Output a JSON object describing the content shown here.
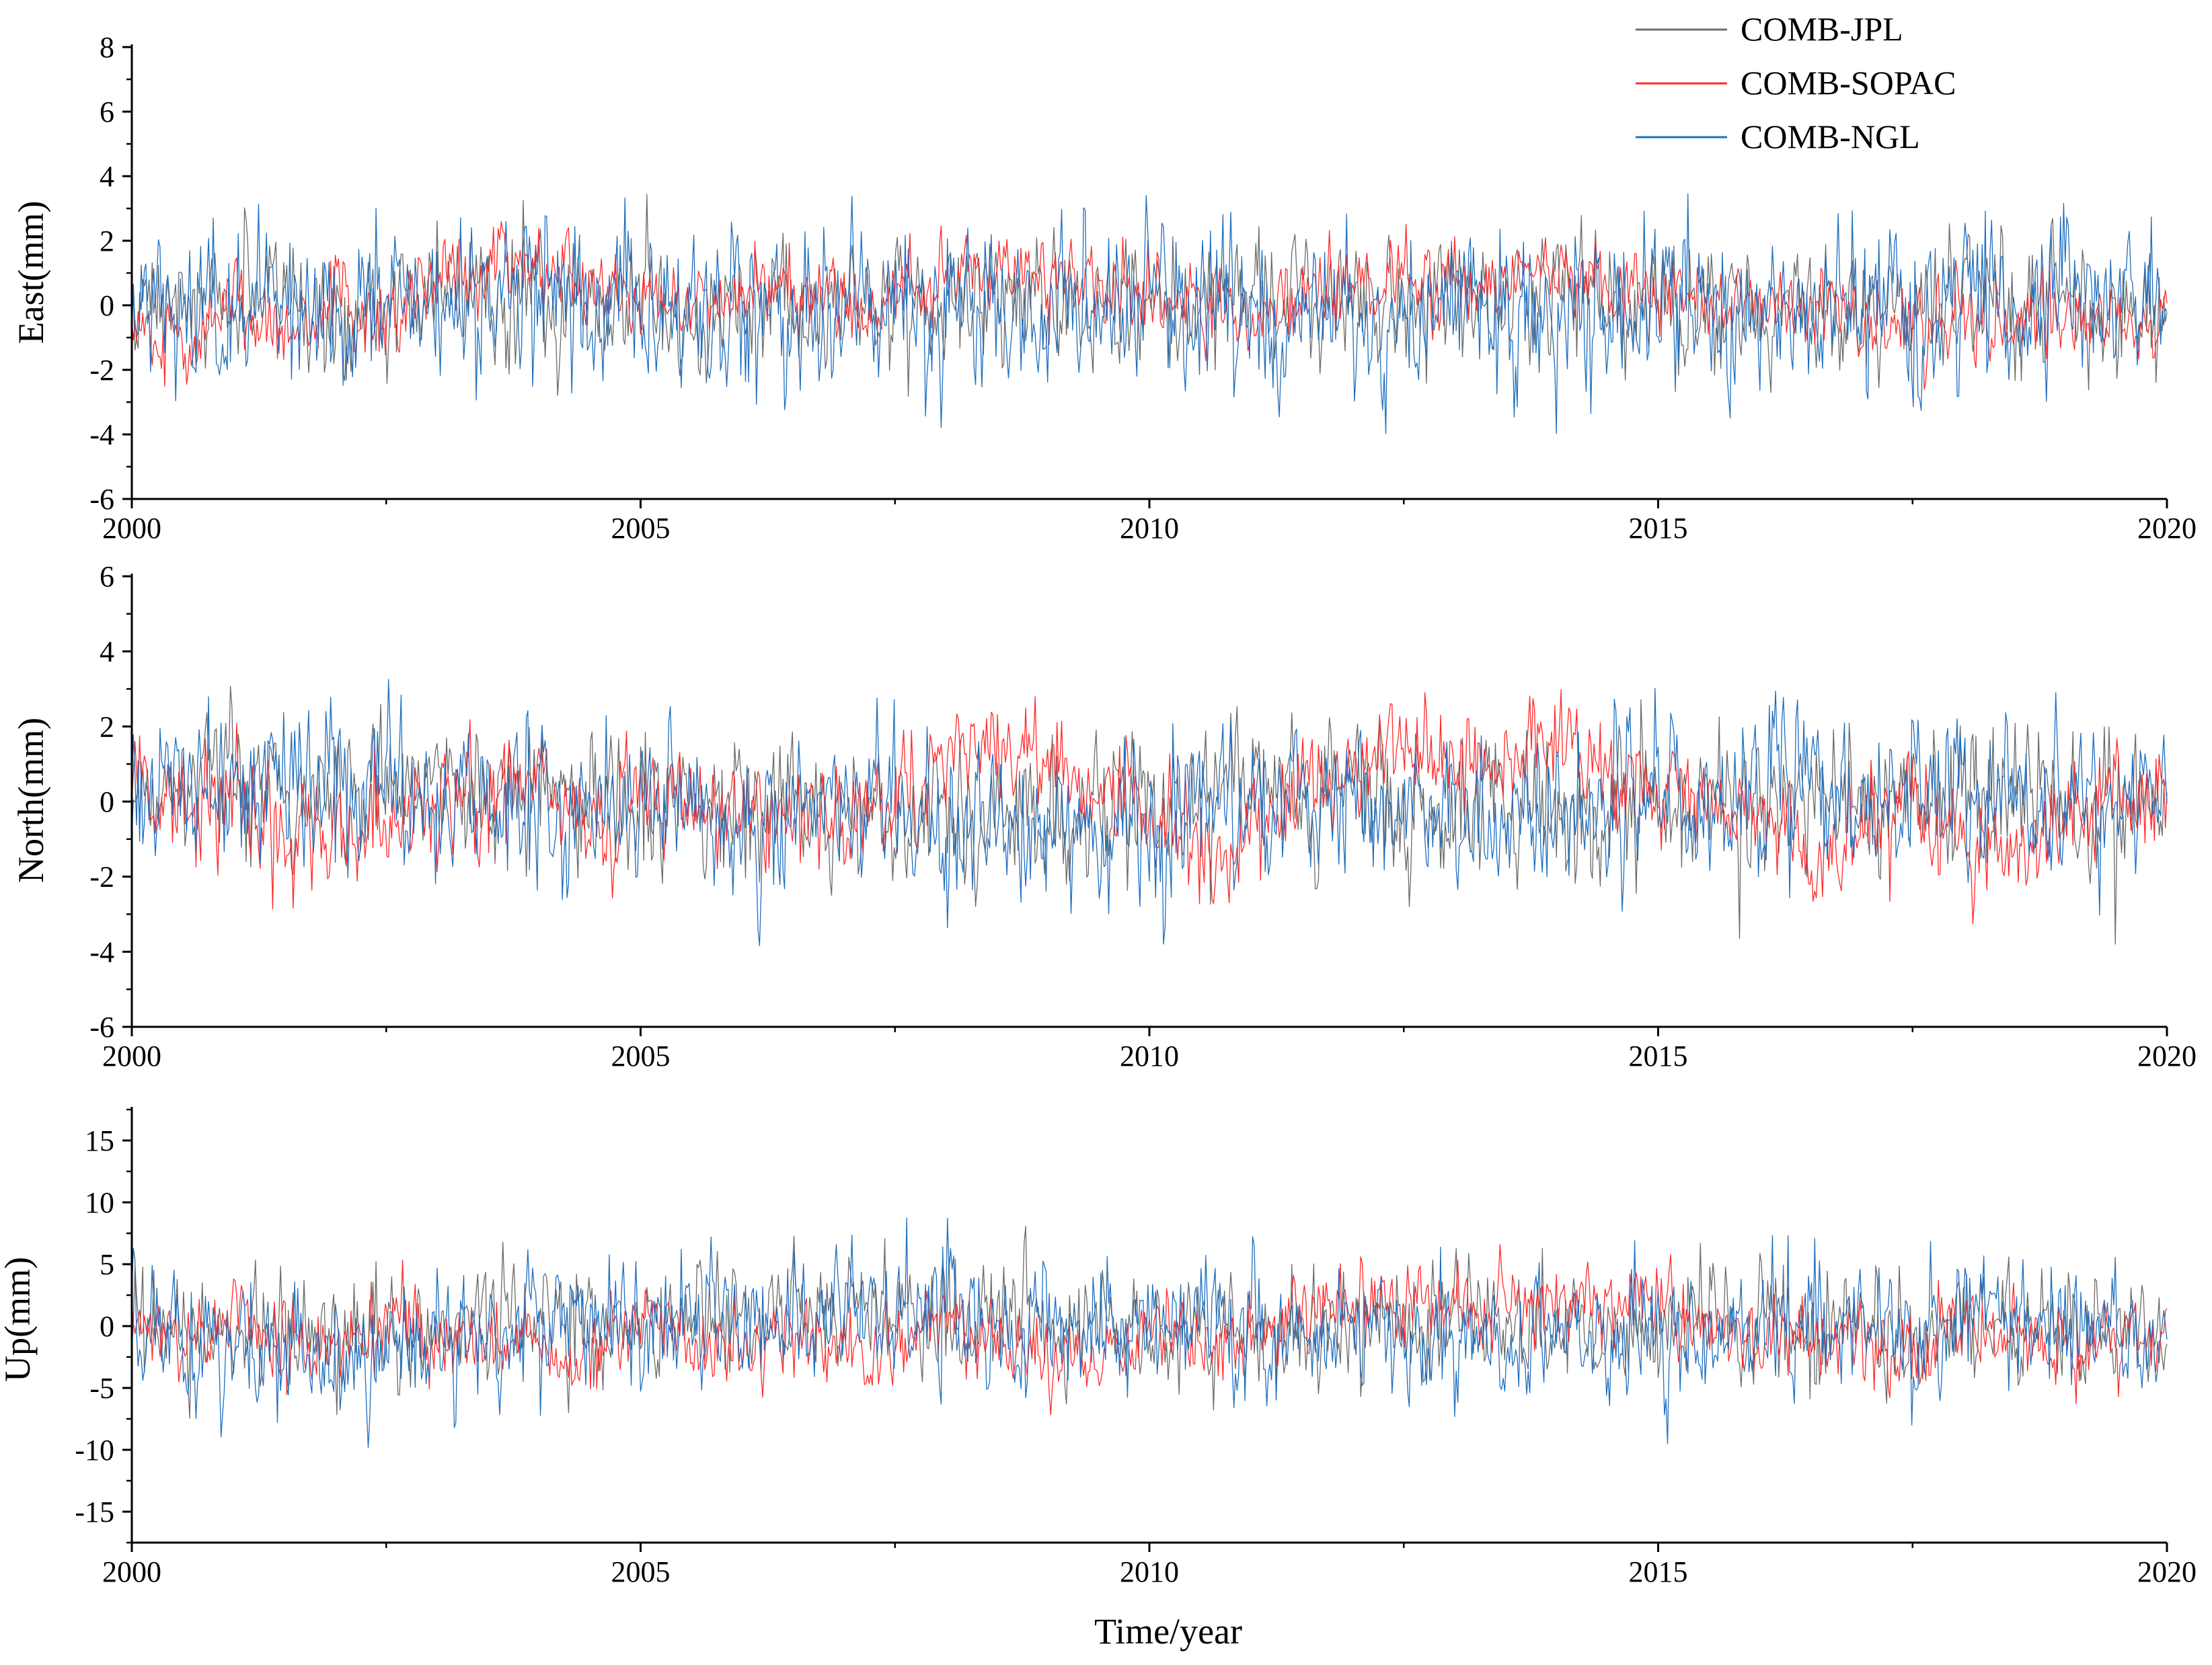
{
  "figure": {
    "xlabel": "Time/year",
    "colors": {
      "COMB-JPL": "#6b6b6b",
      "COMB-SOPAC": "#ff2a2a",
      "COMB-NGL": "#1f6fbf"
    }
  },
  "legend": {
    "position": "top-right",
    "entries": [
      {
        "name": "COMB-JPL",
        "color": "#6b6b6b"
      },
      {
        "name": "COMB-SOPAC",
        "color": "#ff2a2a"
      },
      {
        "name": "COMB-NGL",
        "color": "#1f6fbf"
      }
    ]
  },
  "chart_data": [
    {
      "type": "line",
      "ylabel": "East(mm)",
      "xlabel": "",
      "xlim": [
        2000,
        2020
      ],
      "ylim": [
        -6,
        8
      ],
      "xticks": [
        2000,
        2005,
        2010,
        2015,
        2020
      ],
      "yticks": [
        -6,
        -4,
        -2,
        0,
        2,
        4,
        6,
        8
      ],
      "series": [
        {
          "name": "COMB-JPL",
          "sd": 0.9,
          "x": [
            2000.0,
            2001.0,
            2002.0,
            2003.0,
            2004.0,
            2005.0,
            2006.0,
            2007.0,
            2008.0,
            2009.0,
            2010.0,
            2011.0,
            2012.0,
            2013.0,
            2014.0,
            2015.0,
            2016.0,
            2017.0,
            2018.0,
            2019.0,
            2020.0
          ],
          "values": [
            0,
            0.2,
            -0.1,
            0.3,
            0.1,
            0,
            -0.2,
            0.1,
            0,
            -0.1,
            0.2,
            0,
            -0.1,
            0.1,
            0,
            -0.1,
            0.1,
            0,
            0.1,
            0,
            0
          ]
        },
        {
          "name": "COMB-SOPAC",
          "sd": 0.6,
          "x": [
            2000.0,
            2000.5,
            2001.0,
            2001.5,
            2002.0,
            2002.5,
            2003.0,
            2003.5,
            2004.0,
            2004.5,
            2005.0,
            2006.0,
            2007.0,
            2008.0,
            2009.0,
            2010.0,
            2011.0,
            2012.0,
            2013.0,
            2014.0,
            2015.0,
            2016.0,
            2017.0,
            2018.0,
            2019.0,
            2020.0
          ],
          "values": [
            -0.5,
            -1.5,
            0.3,
            -1.0,
            0.5,
            -0.5,
            0.8,
            1.2,
            1.0,
            0.5,
            0.2,
            0.3,
            0.1,
            0.6,
            0.9,
            0.4,
            -0.4,
            0.8,
            0.6,
            1.0,
            0.5,
            0,
            -0.6,
            -0.5,
            -0.4,
            -0.5
          ]
        },
        {
          "name": "COMB-NGL",
          "sd": 1.2,
          "x": [
            2000.0,
            2001.0,
            2002.0,
            2003.0,
            2004.0,
            2005.0,
            2006.0,
            2007.0,
            2008.0,
            2009.0,
            2010.0,
            2011.0,
            2012.0,
            2013.0,
            2014.0,
            2015.0,
            2016.0,
            2017.0,
            2018.0,
            2019.0,
            2020.0
          ],
          "values": [
            0,
            -0.3,
            -0.5,
            0.5,
            0.3,
            0,
            -0.3,
            0,
            -0.4,
            -0.6,
            0.2,
            -0.3,
            -0.5,
            0,
            -0.5,
            -0.3,
            0,
            -0.3,
            0.4,
            0.3,
            0
          ]
        }
      ]
    },
    {
      "type": "line",
      "ylabel": "North(mm)",
      "xlabel": "",
      "xlim": [
        2000,
        2020
      ],
      "ylim": [
        -6,
        6
      ],
      "xticks": [
        2000,
        2005,
        2010,
        2015,
        2020
      ],
      "yticks": [
        -6,
        -4,
        -2,
        0,
        2,
        4,
        6
      ],
      "series": [
        {
          "name": "COMB-JPL",
          "sd": 0.9,
          "x": [
            2000.0,
            2001.0,
            2002.0,
            2003.0,
            2004.0,
            2005.0,
            2006.0,
            2007.0,
            2008.0,
            2009.0,
            2010.0,
            2011.0,
            2012.0,
            2013.0,
            2014.0,
            2015.0,
            2016.0,
            2017.0,
            2018.0,
            2019.0,
            2020.0
          ],
          "values": [
            0.3,
            0.4,
            0.2,
            0.3,
            0.1,
            0,
            -0.2,
            -0.1,
            -0.3,
            -0.5,
            -0.2,
            0.3,
            0.2,
            0,
            -0.2,
            0,
            0.2,
            -0.1,
            0.3,
            0,
            0
          ]
        },
        {
          "name": "COMB-SOPAC",
          "sd": 0.7,
          "x": [
            2000.0,
            2000.3,
            2001.0,
            2001.7,
            2002.5,
            2003.5,
            2004.0,
            2004.7,
            2005.0,
            2006.0,
            2007.0,
            2008.0,
            2009.0,
            2009.6,
            2010.0,
            2010.7,
            2011.5,
            2012.0,
            2013.0,
            2014.0,
            2015.0,
            2016.0,
            2016.7,
            2017.5,
            2018.0,
            2018.7,
            2019.5,
            2020.0
          ],
          "values": [
            1.5,
            0,
            -0.5,
            -1.0,
            -0.5,
            0.2,
            0.5,
            -1.0,
            0.5,
            -0.5,
            -0.6,
            1.0,
            1.2,
            0.3,
            0,
            -1.5,
            0.5,
            1.0,
            1.2,
            1.5,
            0.5,
            -0.5,
            -1.5,
            0,
            -0.8,
            -1.5,
            0.3,
            0
          ]
        },
        {
          "name": "COMB-NGL",
          "sd": 1.0,
          "x": [
            2000.0,
            2001.0,
            2002.0,
            2003.0,
            2004.0,
            2005.0,
            2006.0,
            2007.0,
            2008.0,
            2009.0,
            2010.0,
            2011.0,
            2012.0,
            2013.0,
            2014.0,
            2015.0,
            2016.0,
            2017.0,
            2018.0,
            2019.0,
            2020.0
          ],
          "values": [
            0.5,
            0.8,
            0.3,
            0.5,
            0.2,
            0,
            -0.3,
            -0.2,
            -0.5,
            -1.0,
            -0.6,
            0.4,
            0,
            -0.2,
            -0.4,
            -0.3,
            0.5,
            0,
            0.4,
            0.2,
            0
          ]
        }
      ]
    },
    {
      "type": "line",
      "ylabel": "Up(mm)",
      "xlabel": "Time/year",
      "xlim": [
        2000,
        2020
      ],
      "ylim": [
        -17.5,
        17.5
      ],
      "xticks": [
        2000,
        2005,
        2010,
        2015,
        2020
      ],
      "yticks": [
        -15,
        -10,
        -5,
        0,
        5,
        10,
        15
      ],
      "series": [
        {
          "name": "COMB-JPL",
          "sd": 2.2,
          "x": [
            2000.0,
            2001.0,
            2002.0,
            2003.0,
            2004.0,
            2005.0,
            2006.0,
            2007.0,
            2008.0,
            2009.0,
            2010.0,
            2011.0,
            2012.0,
            2013.0,
            2014.0,
            2015.0,
            2016.0,
            2017.0,
            2018.0,
            2019.0,
            2020.0
          ],
          "values": [
            0,
            -0.5,
            -1.5,
            -1.0,
            0.5,
            -0.3,
            0.5,
            0.3,
            0.5,
            0.3,
            0,
            -0.5,
            0,
            -0.3,
            -0.5,
            -0.3,
            0,
            -0.3,
            0.5,
            0,
            0
          ]
        },
        {
          "name": "COMB-SOPAC",
          "sd": 1.6,
          "x": [
            2000.0,
            2000.5,
            2001.0,
            2001.7,
            2002.5,
            2003.5,
            2004.5,
            2005.0,
            2005.7,
            2006.5,
            2007.2,
            2008.0,
            2008.7,
            2009.5,
            2010.0,
            2010.8,
            2011.5,
            2012.0,
            2013.0,
            2013.7,
            2014.5,
            2015.0,
            2016.0,
            2017.0,
            2017.5,
            2018.0,
            2019.0,
            2020.0
          ],
          "values": [
            1.0,
            -1.5,
            0.5,
            -2.0,
            0,
            -1.0,
            -3.0,
            0.5,
            -2.5,
            -0.5,
            -2.5,
            0.5,
            -2.0,
            -3.0,
            0,
            -1.5,
            0.5,
            2.0,
            1.0,
            1.0,
            2.5,
            1.0,
            -1.0,
            -1.0,
            -2.0,
            0,
            -1.5,
            -1.0
          ]
        },
        {
          "name": "COMB-NGL",
          "sd": 2.5,
          "x": [
            2000.0,
            2001.0,
            2002.0,
            2003.0,
            2004.0,
            2005.0,
            2006.0,
            2007.0,
            2008.0,
            2009.0,
            2010.0,
            2011.0,
            2012.0,
            2013.0,
            2014.0,
            2015.0,
            2016.0,
            2017.0,
            2018.0,
            2019.0,
            2020.0
          ],
          "values": [
            0,
            -1.5,
            -2.5,
            -1.5,
            1.0,
            0,
            1.0,
            1.0,
            0.5,
            0.5,
            0,
            -1.0,
            0,
            -0.5,
            -1.5,
            -1.0,
            0,
            -0.5,
            1.0,
            0.5,
            0
          ]
        }
      ]
    }
  ]
}
